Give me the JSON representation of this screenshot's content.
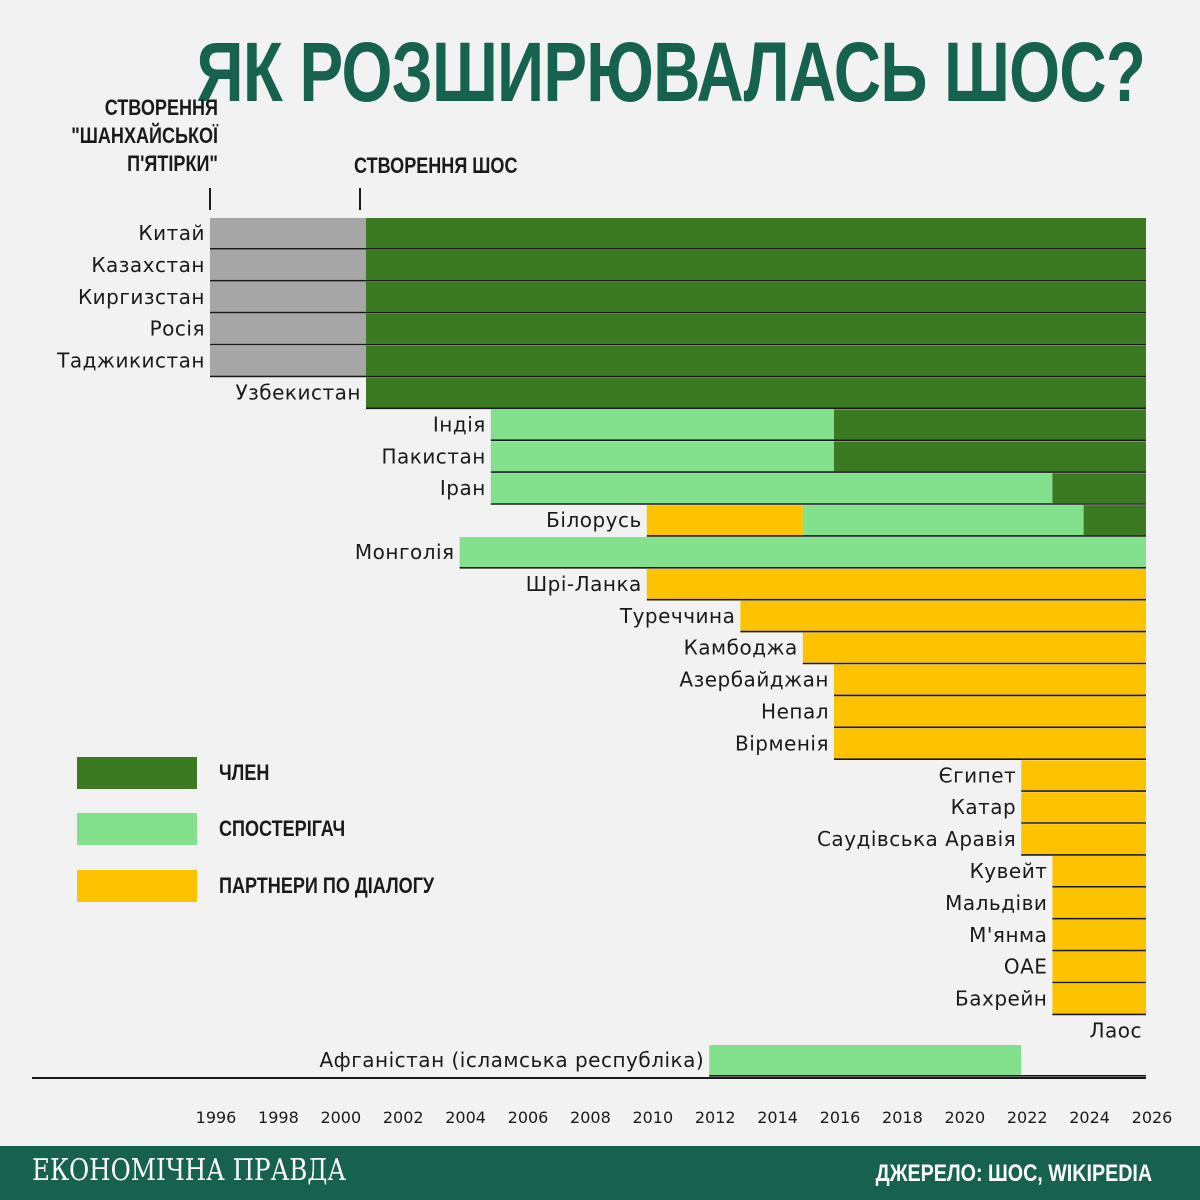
{
  "title": "ЯК РОЗШИРЮВАЛАСЬ ШОС?",
  "annotations": {
    "shanghai_five": [
      "СТВОРЕННЯ",
      "\"ШАНХАЙСЬКОЇ",
      "П'ЯТІРКИ\""
    ],
    "sco_founding": "СТВОРЕННЯ ШОС"
  },
  "legend": [
    {
      "label": "ЧЛЕН",
      "color": "#3b7a22"
    },
    {
      "label": "СПОСТЕРІГАЧ",
      "color": "#83e08c"
    },
    {
      "label": "ПАРТНЕРИ ПО ДІАЛОГУ",
      "color": "#fdc300"
    }
  ],
  "footer": {
    "brand": "ЕКОНОМІЧНА ПРАВДА",
    "source": "ДЖЕРЕЛО: ШОС, WIKIPEDIA"
  },
  "colors": {
    "shanghai_five": "#a6a6a6",
    "member": "#3b7a22",
    "observer": "#83e08c",
    "dialogue_partner": "#fdc300",
    "title": "#16624f",
    "footer_bg": "#16624f"
  },
  "chart_data": {
    "type": "bar",
    "orientation": "horizontal-timeline",
    "x_ticks": [
      1996,
      1998,
      2000,
      2002,
      2004,
      2006,
      2008,
      2010,
      2012,
      2014,
      2016,
      2018,
      2020,
      2022,
      2024,
      2026
    ],
    "xlim": [
      1996,
      2026
    ],
    "grid": false,
    "legend_position": "left-middle",
    "rows": [
      {
        "country": "Китай",
        "segments": [
          {
            "status": "shanghai_five",
            "from": 1996,
            "to": 2001
          },
          {
            "status": "member",
            "from": 2001,
            "to": 2026
          }
        ]
      },
      {
        "country": "Казахстан",
        "segments": [
          {
            "status": "shanghai_five",
            "from": 1996,
            "to": 2001
          },
          {
            "status": "member",
            "from": 2001,
            "to": 2026
          }
        ]
      },
      {
        "country": "Киргизстан",
        "segments": [
          {
            "status": "shanghai_five",
            "from": 1996,
            "to": 2001
          },
          {
            "status": "member",
            "from": 2001,
            "to": 2026
          }
        ]
      },
      {
        "country": "Росія",
        "segments": [
          {
            "status": "shanghai_five",
            "from": 1996,
            "to": 2001
          },
          {
            "status": "member",
            "from": 2001,
            "to": 2026
          }
        ]
      },
      {
        "country": "Таджикистан",
        "segments": [
          {
            "status": "shanghai_five",
            "from": 1996,
            "to": 2001
          },
          {
            "status": "member",
            "from": 2001,
            "to": 2026
          }
        ]
      },
      {
        "country": "Узбекистан",
        "segments": [
          {
            "status": "member",
            "from": 2001,
            "to": 2026
          }
        ]
      },
      {
        "country": "Індія",
        "segments": [
          {
            "status": "observer",
            "from": 2005,
            "to": 2016
          },
          {
            "status": "member",
            "from": 2016,
            "to": 2026
          }
        ]
      },
      {
        "country": "Пакистан",
        "segments": [
          {
            "status": "observer",
            "from": 2005,
            "to": 2016
          },
          {
            "status": "member",
            "from": 2016,
            "to": 2026
          }
        ]
      },
      {
        "country": "Іран",
        "segments": [
          {
            "status": "observer",
            "from": 2005,
            "to": 2023
          },
          {
            "status": "member",
            "from": 2023,
            "to": 2026
          }
        ]
      },
      {
        "country": "Білорусь",
        "segments": [
          {
            "status": "dialogue_partner",
            "from": 2010,
            "to": 2015
          },
          {
            "status": "observer",
            "from": 2015,
            "to": 2024
          },
          {
            "status": "member",
            "from": 2024,
            "to": 2026
          }
        ]
      },
      {
        "country": "Монголія",
        "segments": [
          {
            "status": "observer",
            "from": 2004,
            "to": 2026
          }
        ]
      },
      {
        "country": "Шрі-Ланка",
        "segments": [
          {
            "status": "dialogue_partner",
            "from": 2010,
            "to": 2026
          }
        ]
      },
      {
        "country": "Туреччина",
        "segments": [
          {
            "status": "dialogue_partner",
            "from": 2013,
            "to": 2026
          }
        ]
      },
      {
        "country": "Камбоджа",
        "segments": [
          {
            "status": "dialogue_partner",
            "from": 2015,
            "to": 2026
          }
        ]
      },
      {
        "country": "Азербайджан",
        "segments": [
          {
            "status": "dialogue_partner",
            "from": 2016,
            "to": 2026
          }
        ]
      },
      {
        "country": "Непал",
        "segments": [
          {
            "status": "dialogue_partner",
            "from": 2016,
            "to": 2026
          }
        ]
      },
      {
        "country": "Вірменія",
        "segments": [
          {
            "status": "dialogue_partner",
            "from": 2016,
            "to": 2026
          }
        ]
      },
      {
        "country": "Єгипет",
        "segments": [
          {
            "status": "dialogue_partner",
            "from": 2022,
            "to": 2026
          }
        ]
      },
      {
        "country": "Катар",
        "segments": [
          {
            "status": "dialogue_partner",
            "from": 2022,
            "to": 2026
          }
        ]
      },
      {
        "country": "Саудівська Аравія",
        "segments": [
          {
            "status": "dialogue_partner",
            "from": 2022,
            "to": 2026
          }
        ]
      },
      {
        "country": "Кувейт",
        "segments": [
          {
            "status": "dialogue_partner",
            "from": 2023,
            "to": 2026
          }
        ]
      },
      {
        "country": "Мальдіви",
        "segments": [
          {
            "status": "dialogue_partner",
            "from": 2023,
            "to": 2026
          }
        ]
      },
      {
        "country": "М'янма",
        "segments": [
          {
            "status": "dialogue_partner",
            "from": 2023,
            "to": 2026
          }
        ]
      },
      {
        "country": "ОАЕ",
        "segments": [
          {
            "status": "dialogue_partner",
            "from": 2023,
            "to": 2026
          }
        ]
      },
      {
        "country": "Бахрейн",
        "segments": [
          {
            "status": "dialogue_partner",
            "from": 2023,
            "to": 2026
          }
        ]
      },
      {
        "country": "Лаос",
        "segments": []
      },
      {
        "country": "Афганістан (ісламська республіка)",
        "segments": [
          {
            "status": "observer",
            "from": 2012,
            "to": 2022
          }
        ]
      }
    ]
  }
}
